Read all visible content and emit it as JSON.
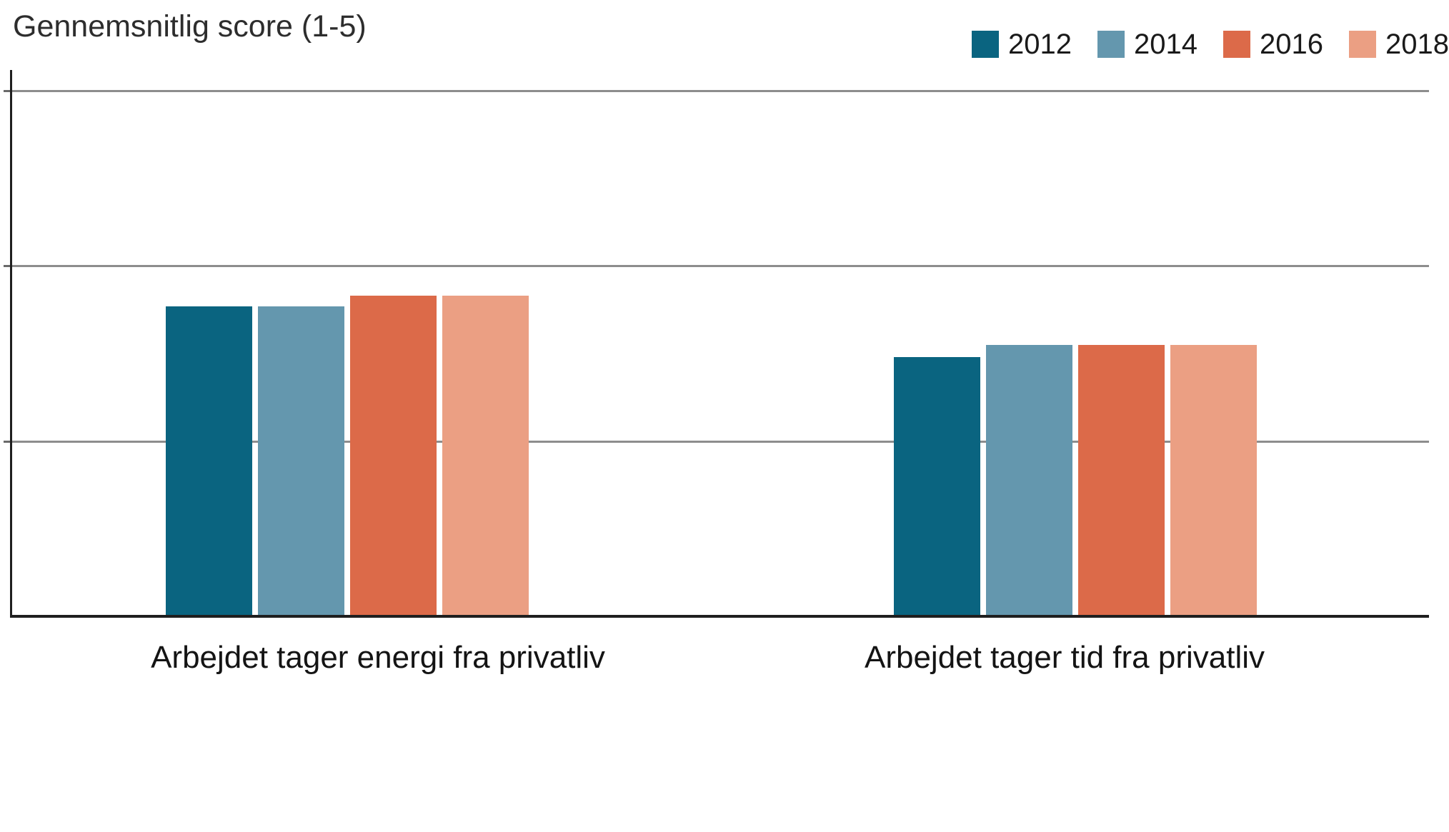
{
  "header": {
    "title": "Gennemsnitlig score (1-5)"
  },
  "chart_data": {
    "type": "bar",
    "title": "Gennemsnitlig score (1-5)",
    "categories": [
      "Arbejdet tager energi fra privatliv",
      "Arbejdet tager tid fra privatliv"
    ],
    "series": [
      {
        "name": "2012",
        "color": "#0A6480",
        "values": [
          2.77,
          2.48
        ]
      },
      {
        "name": "2014",
        "color": "#6497AE",
        "values": [
          2.77,
          2.55
        ]
      },
      {
        "name": "2016",
        "color": "#DC6A49",
        "values": [
          2.83,
          2.55
        ]
      },
      {
        "name": "2018",
        "color": "#EB9F83",
        "values": [
          2.83,
          2.55
        ]
      }
    ],
    "xlabel": "",
    "ylabel": "Gennemsnitlig score (1-5)",
    "ylim": [
      1,
      4.12
    ],
    "yticks": [
      2,
      3,
      4
    ],
    "ytick_labels_visible": false,
    "grid": true,
    "legend_position": "top-right",
    "legend_labels": [
      "2012",
      "2014",
      "2016",
      "2018"
    ]
  }
}
